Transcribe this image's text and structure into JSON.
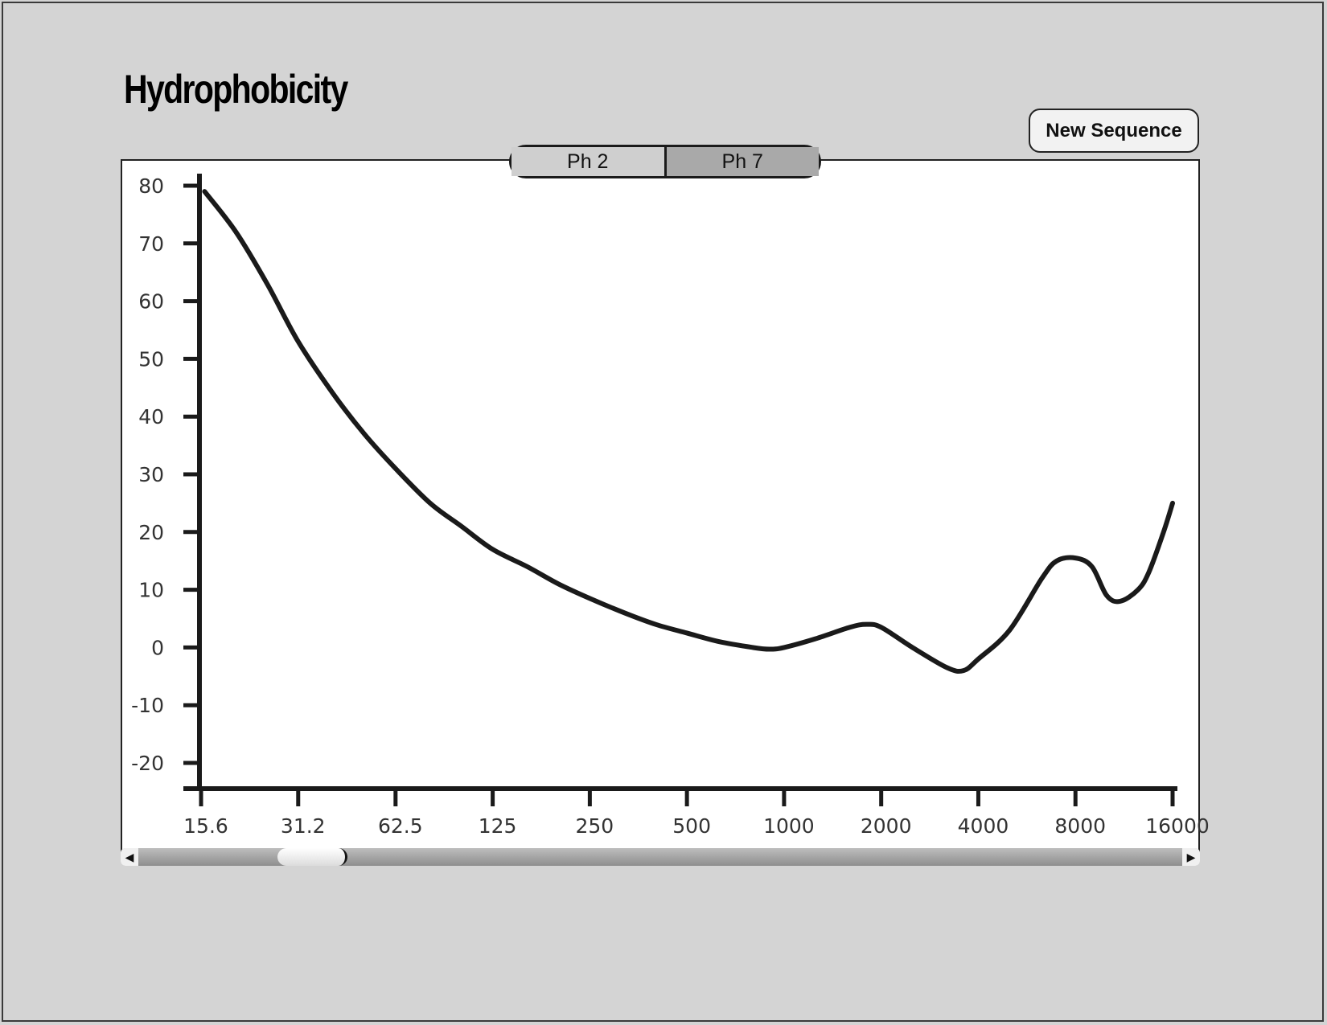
{
  "app": {
    "title": "Hydrophobicity"
  },
  "toolbar": {
    "new_sequence_label": "New Sequence"
  },
  "tabs": [
    {
      "label": "Ph 2",
      "selected": false
    },
    {
      "label": "Ph 7",
      "selected": true
    }
  ],
  "scrollbar": {
    "left_arrow": "◀",
    "right_arrow": "▶",
    "thumb_start_fraction": 0.145,
    "thumb_end_fraction": 0.21
  },
  "colors": {
    "background": "#d4d4d4",
    "panel": "#ffffff",
    "line": "#1a1a1a",
    "tab_selected": "#a9a9a9",
    "tab_unselected": "#cfcfcf"
  },
  "chart_data": {
    "type": "line",
    "title": "",
    "xlabel": "",
    "ylabel": "",
    "x_scale": "log2",
    "x_ticks": [
      "15.6",
      "31.2",
      "62.5",
      "125",
      "250",
      "500",
      "1000",
      "2000",
      "4000",
      "8000",
      "16000"
    ],
    "y_ticks": [
      80,
      70,
      60,
      50,
      40,
      30,
      20,
      10,
      0,
      -10,
      -20
    ],
    "ylim": [
      -20,
      80
    ],
    "xlim": [
      15.6,
      16000
    ],
    "grid": false,
    "series": [
      {
        "x": [
          16,
          20,
          25,
          31.2,
          40,
          50,
          62.5,
          80,
          100,
          125,
          160,
          200,
          250,
          320,
          400,
          500,
          630,
          800,
          900,
          1000,
          1250,
          1600,
          1800,
          2000,
          2500,
          3200,
          3600,
          4000,
          5000,
          6300,
          7000,
          8000,
          9000,
          10000,
          11000,
          12500,
          13500,
          15000,
          16000
        ],
        "y": [
          79,
          72,
          63,
          53,
          44,
          37,
          31,
          25,
          21,
          17,
          14,
          11,
          8.5,
          6,
          4,
          2.5,
          1,
          0,
          -0.3,
          0,
          1.5,
          3.5,
          4,
          3.5,
          0,
          -3.5,
          -4,
          -2,
          3,
          12,
          15,
          15.5,
          14,
          9,
          8,
          10,
          13,
          20,
          25
        ]
      }
    ]
  }
}
